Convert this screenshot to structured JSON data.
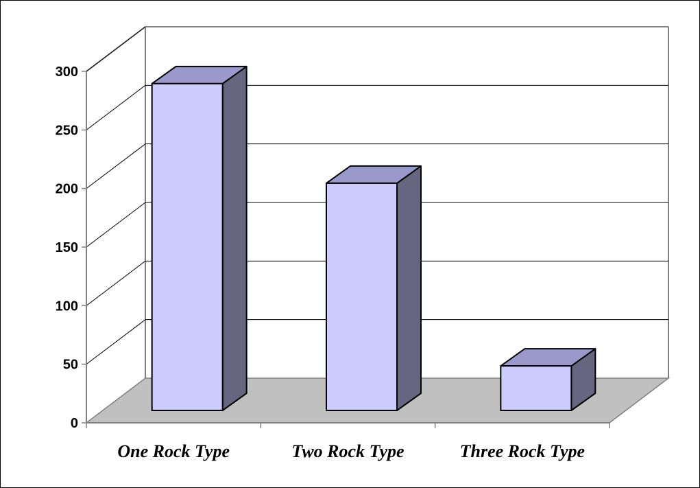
{
  "chart_data": {
    "type": "bar",
    "categories": [
      "One Rock Type",
      "Two Rock Type",
      "Three Rock Type"
    ],
    "values": [
      279,
      194,
      38
    ],
    "ylim": [
      0,
      300
    ],
    "yticks": [
      0,
      50,
      100,
      150,
      200,
      250,
      300
    ],
    "grid": true,
    "legend": "none",
    "colors": {
      "bar_front": "#ccccff",
      "bar_top": "#9999cc",
      "bar_side": "#666680",
      "floor": "#c0c0c0",
      "gridline": "#000000",
      "walls": "#808080"
    }
  }
}
